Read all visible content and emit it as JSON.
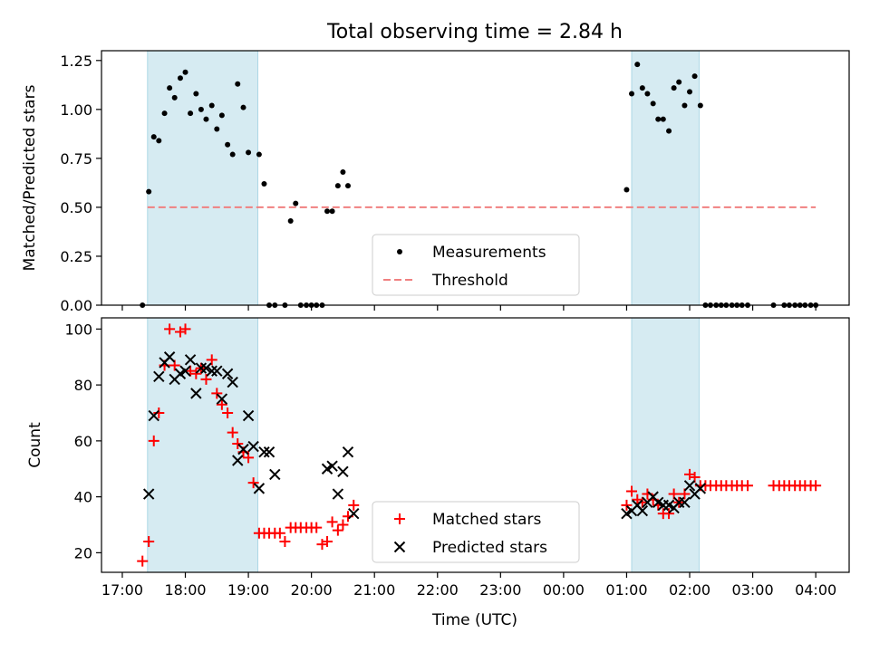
{
  "title": "Total observing time = 2.84 h",
  "chart_data": {
    "type": "scatter",
    "title": "Total observing time = 2.84 h",
    "xlabel": "Time (UTC)",
    "x_unit": "hours since 17:00 UTC",
    "x_ticks": [
      {
        "value": 0.0,
        "label": "17:00"
      },
      {
        "value": 1.0,
        "label": "18:00"
      },
      {
        "value": 2.0,
        "label": "19:00"
      },
      {
        "value": 3.0,
        "label": "20:00"
      },
      {
        "value": 4.0,
        "label": "21:00"
      },
      {
        "value": 5.0,
        "label": "22:00"
      },
      {
        "value": 6.0,
        "label": "23:00"
      },
      {
        "value": 7.0,
        "label": "00:00"
      },
      {
        "value": 8.0,
        "label": "01:00"
      },
      {
        "value": 9.0,
        "label": "02:00"
      },
      {
        "value": 10.0,
        "label": "03:00"
      },
      {
        "value": 11.0,
        "label": "04:00"
      }
    ],
    "xlim": [
      -0.33,
      11.53
    ],
    "shaded_spans": [
      {
        "start": 0.4,
        "end": 2.15,
        "color": "#add8e6"
      },
      {
        "start": 8.08,
        "end": 9.15,
        "color": "#add8e6"
      }
    ],
    "panels": [
      {
        "ylabel": "Matched/Predicted stars",
        "ylim": [
          0.0,
          1.3
        ],
        "y_ticks": [
          0.0,
          0.25,
          0.5,
          0.75,
          1.0,
          1.25
        ],
        "y_tick_labels": [
          "0.00",
          "0.25",
          "0.50",
          "0.75",
          "1.00",
          "1.25"
        ],
        "legend_position": "bottom-center",
        "threshold": {
          "name": "Threshold",
          "value": 0.5,
          "x_range": [
            0.4,
            11.0
          ],
          "color": "#f08080"
        },
        "series": [
          {
            "name": "Measurements",
            "marker": "dot",
            "color": "#000000",
            "x": [
              0.32,
              0.42,
              0.5,
              0.58,
              0.67,
              0.75,
              0.83,
              0.92,
              1.0,
              1.08,
              1.17,
              1.25,
              1.33,
              1.42,
              1.5,
              1.58,
              1.67,
              1.75,
              1.83,
              1.92,
              2.0,
              2.17,
              2.25,
              2.33,
              2.42,
              2.58,
              2.67,
              2.75,
              2.83,
              2.92,
              3.0,
              3.08,
              3.17,
              3.25,
              3.33,
              3.42,
              3.5,
              3.58,
              8.0,
              8.08,
              8.17,
              8.25,
              8.33,
              8.42,
              8.5,
              8.58,
              8.67,
              8.75,
              8.83,
              8.92,
              9.0,
              9.08,
              9.17,
              9.25,
              9.33,
              9.42,
              9.5,
              9.58,
              9.67,
              9.75,
              9.83,
              9.92,
              10.33,
              10.5,
              10.58,
              10.67,
              10.75,
              10.83,
              10.92,
              11.0
            ],
            "y": [
              0.0,
              0.58,
              0.86,
              0.84,
              0.98,
              1.11,
              1.06,
              1.16,
              1.19,
              0.98,
              1.08,
              1.0,
              0.95,
              1.02,
              0.9,
              0.97,
              0.82,
              0.77,
              1.13,
              1.01,
              0.78,
              0.77,
              0.62,
              0.0,
              0.0,
              0.0,
              0.43,
              0.52,
              0.0,
              0.0,
              0.0,
              0.0,
              0.0,
              0.48,
              0.48,
              0.61,
              0.68,
              0.61,
              0.59,
              1.08,
              1.23,
              1.11,
              1.08,
              1.03,
              0.95,
              0.95,
              0.89,
              1.11,
              1.14,
              1.02,
              1.09,
              1.17,
              1.02,
              0.0,
              0.0,
              0.0,
              0.0,
              0.0,
              0.0,
              0.0,
              0.0,
              0.0,
              0.0,
              0.0,
              0.0,
              0.0,
              0.0,
              0.0,
              0.0,
              0.0
            ]
          }
        ]
      },
      {
        "ylabel": "Count",
        "ylim": [
          13,
          104
        ],
        "y_ticks": [
          20,
          40,
          60,
          80,
          100
        ],
        "y_tick_labels": [
          "20",
          "40",
          "60",
          "80",
          "100"
        ],
        "legend_position": "bottom-center",
        "series": [
          {
            "name": "Matched stars",
            "marker": "plus",
            "color": "#ff0000",
            "x": [
              0.32,
              0.42,
              0.5,
              0.58,
              0.67,
              0.75,
              0.83,
              0.92,
              1.0,
              1.08,
              1.17,
              1.25,
              1.33,
              1.42,
              1.5,
              1.58,
              1.67,
              1.75,
              1.83,
              1.92,
              2.0,
              2.08,
              2.17,
              2.25,
              2.33,
              2.42,
              2.5,
              2.58,
              2.67,
              2.75,
              2.83,
              2.92,
              3.0,
              3.08,
              3.17,
              3.25,
              3.33,
              3.42,
              3.5,
              3.58,
              3.67,
              8.0,
              8.08,
              8.17,
              8.25,
              8.33,
              8.42,
              8.5,
              8.58,
              8.67,
              8.75,
              8.83,
              8.92,
              9.0,
              9.08,
              9.17,
              9.25,
              9.33,
              9.42,
              9.5,
              9.58,
              9.67,
              9.75,
              9.83,
              9.92,
              10.33,
              10.42,
              10.5,
              10.58,
              10.67,
              10.75,
              10.83,
              10.92,
              11.0
            ],
            "y": [
              17,
              24,
              60,
              70,
              87,
              100,
              87,
              99,
              100,
              85,
              84,
              86,
              82,
              89,
              77,
              73,
              70,
              63,
              59,
              56,
              54,
              45,
              27,
              27,
              27,
              27,
              27,
              24,
              29,
              29,
              29,
              29,
              29,
              29,
              23,
              24,
              31,
              28,
              30,
              33,
              37,
              37,
              42,
              39,
              38,
              41,
              39,
              37,
              34,
              34,
              41,
              38,
              41,
              48,
              47,
              44,
              44,
              44,
              44,
              44,
              44,
              44,
              44,
              44,
              44,
              44,
              44,
              44,
              44,
              44,
              44,
              44,
              44,
              44
            ],
            "note": ""
          },
          {
            "name": "Predicted stars",
            "marker": "x",
            "color": "#000000",
            "x": [
              0.42,
              0.5,
              0.58,
              0.67,
              0.75,
              0.83,
              0.92,
              1.0,
              1.08,
              1.17,
              1.25,
              1.33,
              1.42,
              1.5,
              1.58,
              1.67,
              1.75,
              1.83,
              1.92,
              2.0,
              2.08,
              2.17,
              2.25,
              2.33,
              2.42,
              3.25,
              3.33,
              3.42,
              3.5,
              3.58,
              3.67,
              8.0,
              8.08,
              8.17,
              8.25,
              8.33,
              8.42,
              8.5,
              8.58,
              8.67,
              8.75,
              8.83,
              8.92,
              9.0,
              9.08,
              9.17
            ],
            "y": [
              41,
              69,
              83,
              88,
              90,
              82,
              84,
              85,
              89,
              77,
              86,
              86,
              85,
              85,
              75,
              84,
              81,
              53,
              57,
              69,
              58,
              43,
              56,
              56,
              48,
              50,
              51,
              41,
              49,
              56,
              34,
              34,
              35,
              37,
              35,
              38,
              40,
              38,
              37,
              37,
              36,
              38,
              38,
              44,
              41,
              43
            ]
          }
        ]
      }
    ]
  }
}
